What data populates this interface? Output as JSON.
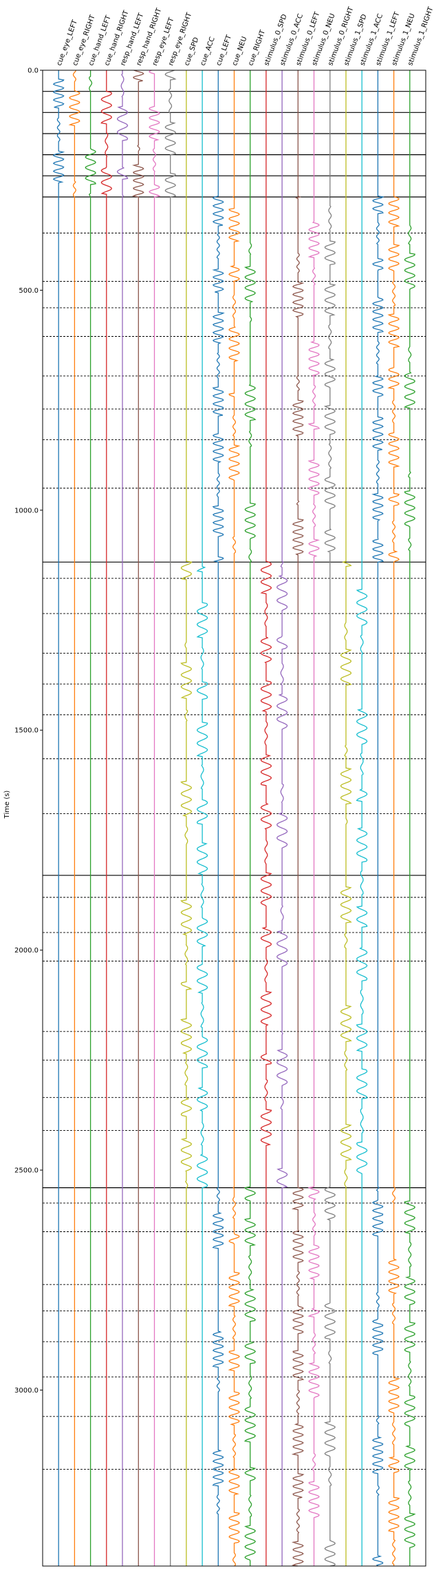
{
  "chart_data": {
    "type": "line",
    "ylabel": "Time (s)",
    "ylim": [
      0,
      3400
    ],
    "y_inverted": true,
    "yticks": [
      {
        "value": 0,
        "label": "0.0"
      },
      {
        "value": 500,
        "label": "500.0"
      },
      {
        "value": 1000,
        "label": "1000.0"
      },
      {
        "value": 1500,
        "label": "1500.0"
      },
      {
        "value": 2000,
        "label": "2000.0"
      },
      {
        "value": 2500,
        "label": "2500.0"
      },
      {
        "value": 3000,
        "label": "3000.0"
      }
    ],
    "columns": [
      {
        "name": "cue_eye_LEFT",
        "color": "#1f77b4"
      },
      {
        "name": "cue_eye_RIGHT",
        "color": "#ff7f0e"
      },
      {
        "name": "cue_hand_LEFT",
        "color": "#2ca02c"
      },
      {
        "name": "cue_hand_RIGHT",
        "color": "#d62728"
      },
      {
        "name": "resp_hand_LEFT",
        "color": "#9467bd"
      },
      {
        "name": "resp_hand_RIGHT",
        "color": "#8c564b"
      },
      {
        "name": "resp_eye_LEFT",
        "color": "#e377c2"
      },
      {
        "name": "resp_eye_RIGHT",
        "color": "#7f7f7f"
      },
      {
        "name": "cue_SPD",
        "color": "#bcbd22"
      },
      {
        "name": "cue_ACC",
        "color": "#17becf"
      },
      {
        "name": "cue_LEFT",
        "color": "#1f77b4"
      },
      {
        "name": "cue_NEU",
        "color": "#ff7f0e"
      },
      {
        "name": "cue_RIGHT",
        "color": "#2ca02c"
      },
      {
        "name": "stimulus_0_SPD",
        "color": "#d62728"
      },
      {
        "name": "stimulus_0_ACC",
        "color": "#9467bd"
      },
      {
        "name": "stimulus_0_LEFT",
        "color": "#8c564b"
      },
      {
        "name": "stimulus_0_NEU",
        "color": "#e377c2"
      },
      {
        "name": "stimulus_0_RIGHT",
        "color": "#7f7f7f"
      },
      {
        "name": "stimulus_1_SPD",
        "color": "#bcbd22"
      },
      {
        "name": "stimulus_1_ACC",
        "color": "#17becf"
      },
      {
        "name": "stimulus_1_LEFT",
        "color": "#1f77b4"
      },
      {
        "name": "stimulus_1_NEU",
        "color": "#ff7f0e"
      },
      {
        "name": "stimulus_1_RIGHT",
        "color": "#2ca02c"
      }
    ],
    "run_boundaries": [
      0,
      48,
      96,
      144,
      192,
      240,
      288,
      1118,
      1830,
      2540,
      3400
    ],
    "block_boundaries": [
      370,
      480,
      540,
      605,
      695,
      770,
      840,
      950,
      1155,
      1235,
      1325,
      1395,
      1465,
      1565,
      1690,
      1880,
      1960,
      2025,
      2185,
      2250,
      2335,
      2410,
      2575,
      2640,
      2760,
      2820,
      2890,
      2970,
      3060,
      3180
    ],
    "segments": [
      {
        "y0": 0,
        "y1": 288,
        "active": [
          "cue_eye_LEFT",
          "cue_eye_RIGHT",
          "cue_hand_LEFT",
          "cue_hand_RIGHT",
          "resp_hand_LEFT",
          "resp_hand_RIGHT",
          "resp_eye_LEFT",
          "resp_eye_RIGHT"
        ]
      },
      {
        "y0": 288,
        "y1": 1118,
        "active": [
          "cue_LEFT",
          "cue_NEU",
          "cue_RIGHT",
          "stimulus_0_LEFT",
          "stimulus_0_NEU",
          "stimulus_0_RIGHT",
          "stimulus_1_LEFT",
          "stimulus_1_NEU",
          "stimulus_1_RIGHT"
        ]
      },
      {
        "y0": 1118,
        "y1": 2540,
        "active": [
          "cue_SPD",
          "cue_ACC",
          "stimulus_0_SPD",
          "stimulus_0_ACC",
          "stimulus_1_SPD",
          "stimulus_1_ACC"
        ]
      },
      {
        "y0": 2540,
        "y1": 3400,
        "active": [
          "cue_LEFT",
          "cue_NEU",
          "cue_RIGHT",
          "stimulus_0_LEFT",
          "stimulus_0_NEU",
          "stimulus_0_RIGHT",
          "stimulus_1_LEFT",
          "stimulus_1_NEU",
          "stimulus_1_RIGHT"
        ]
      }
    ]
  }
}
